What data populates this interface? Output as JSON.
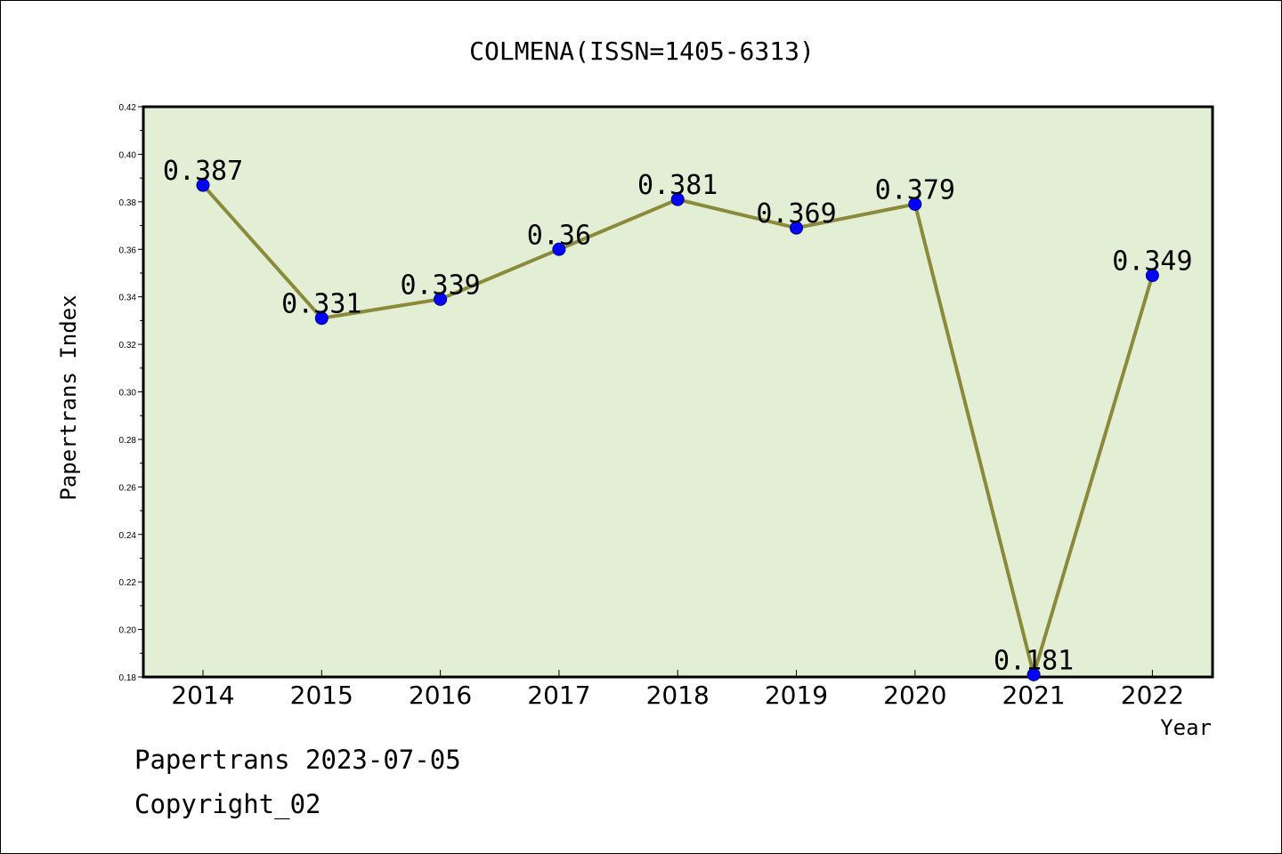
{
  "chart_data": {
    "type": "line",
    "title": "COLMENA(ISSN=1405-6313)",
    "xlabel": "Year",
    "ylabel": "Papertrans Index",
    "categories": [
      "2014",
      "2015",
      "2016",
      "2017",
      "2018",
      "2019",
      "2020",
      "2021",
      "2022"
    ],
    "series": [
      {
        "values": [
          0.387,
          0.331,
          0.339,
          0.36,
          0.381,
          0.369,
          0.379,
          0.181,
          0.349
        ],
        "labels": [
          "0.387",
          "0.331",
          "0.339",
          "0.36",
          "0.381",
          "0.369",
          "0.379",
          "0.181",
          "0.349"
        ]
      }
    ],
    "ylim": [
      0.18,
      0.42
    ],
    "yticks": [
      "0.18",
      "0.20",
      "0.22",
      "0.24",
      "0.26",
      "0.28",
      "0.30",
      "0.32",
      "0.34",
      "0.36",
      "0.38",
      "0.40",
      "0.42"
    ],
    "grid": false,
    "colors": {
      "plot_background": "#e2efd5",
      "line": "#8b8a3a",
      "marker": "#0000ff"
    }
  },
  "footer": {
    "line1": "Papertrans 2023-07-05",
    "line2": "Copyright_02"
  }
}
